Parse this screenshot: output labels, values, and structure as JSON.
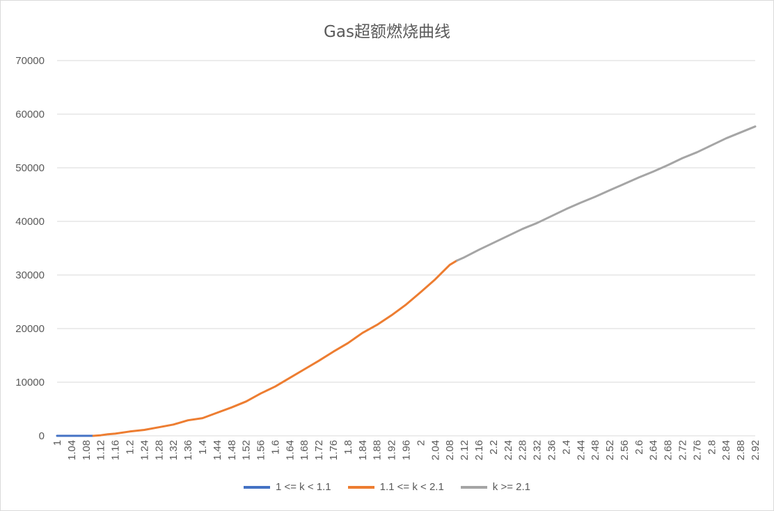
{
  "chart_data": {
    "type": "line",
    "title": "Gas超额燃烧曲线",
    "xlabel": "",
    "ylabel": "",
    "ylim": [
      0,
      70000
    ],
    "xlim": [
      1,
      2.92
    ],
    "yticks": [
      "0",
      "10000",
      "20000",
      "30000",
      "40000",
      "50000",
      "60000",
      "70000"
    ],
    "xticks": [
      "1",
      "1.04",
      "1.08",
      "1.12",
      "1.16",
      "1.2",
      "1.24",
      "1.28",
      "1.32",
      "1.36",
      "1.4",
      "1.44",
      "1.48",
      "1.52",
      "1.56",
      "1.6",
      "1.64",
      "1.68",
      "1.72",
      "1.76",
      "1.8",
      "1.84",
      "1.88",
      "1.92",
      "1.96",
      "2",
      "2.04",
      "2.08",
      "2.12",
      "2.16",
      "2.2",
      "2.24",
      "2.28",
      "2.32",
      "2.36",
      "2.4",
      "2.44",
      "2.48",
      "2.52",
      "2.56",
      "2.6",
      "2.64",
      "2.68",
      "2.72",
      "2.76",
      "2.8",
      "2.84",
      "2.88",
      "2.92"
    ],
    "grid": true,
    "legend_position": "bottom",
    "series": [
      {
        "name": "1 <= k < 1.1",
        "color": "#4472c4",
        "points": [
          [
            1.0,
            0
          ],
          [
            1.02,
            0
          ],
          [
            1.04,
            0
          ],
          [
            1.06,
            0
          ],
          [
            1.08,
            0
          ],
          [
            1.1,
            0
          ]
        ]
      },
      {
        "name": "1.1 <= k < 2.1",
        "color": "#ed7d31",
        "points": [
          [
            1.1,
            0
          ],
          [
            1.12,
            100
          ],
          [
            1.14,
            300
          ],
          [
            1.16,
            400
          ],
          [
            1.2,
            800
          ],
          [
            1.24,
            1100
          ],
          [
            1.28,
            1600
          ],
          [
            1.32,
            2100
          ],
          [
            1.36,
            2900
          ],
          [
            1.4,
            3300
          ],
          [
            1.44,
            4300
          ],
          [
            1.48,
            5300
          ],
          [
            1.52,
            6400
          ],
          [
            1.56,
            7900
          ],
          [
            1.6,
            9200
          ],
          [
            1.64,
            10800
          ],
          [
            1.68,
            12400
          ],
          [
            1.72,
            14000
          ],
          [
            1.76,
            15700
          ],
          [
            1.8,
            17300
          ],
          [
            1.84,
            19200
          ],
          [
            1.88,
            20700
          ],
          [
            1.92,
            22500
          ],
          [
            1.96,
            24500
          ],
          [
            2.0,
            26800
          ],
          [
            2.04,
            29200
          ],
          [
            2.08,
            31900
          ],
          [
            2.1,
            32700
          ]
        ]
      },
      {
        "name": "k >= 2.1",
        "color": "#a5a5a5",
        "points": [
          [
            2.1,
            32700
          ],
          [
            2.12,
            33300
          ],
          [
            2.16,
            34700
          ],
          [
            2.2,
            36000
          ],
          [
            2.24,
            37300
          ],
          [
            2.28,
            38600
          ],
          [
            2.32,
            39700
          ],
          [
            2.36,
            41000
          ],
          [
            2.4,
            42300
          ],
          [
            2.44,
            43500
          ],
          [
            2.48,
            44600
          ],
          [
            2.52,
            45800
          ],
          [
            2.56,
            47000
          ],
          [
            2.6,
            48200
          ],
          [
            2.64,
            49300
          ],
          [
            2.68,
            50500
          ],
          [
            2.72,
            51800
          ],
          [
            2.76,
            52900
          ],
          [
            2.8,
            54200
          ],
          [
            2.84,
            55500
          ],
          [
            2.88,
            56600
          ],
          [
            2.92,
            57700
          ]
        ]
      }
    ]
  }
}
